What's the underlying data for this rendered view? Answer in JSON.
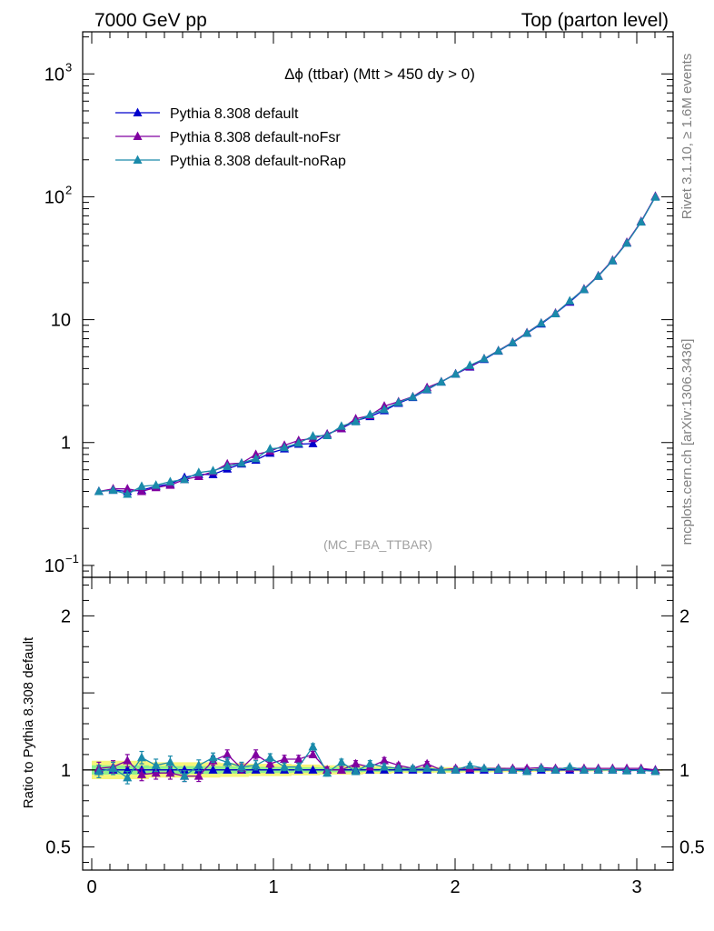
{
  "header": {
    "left": "7000 GeV pp",
    "right": "Top (parton level)"
  },
  "side_labels": {
    "rivet": "Rivet 3.1.10, ≥ 1.6M events",
    "mcplots": "mcplots.cern.ch [arXiv:1306.3436]"
  },
  "chart_data": {
    "type": "line",
    "title": "Δϕ (ttbar) (Mtt > 450 dy > 0)",
    "watermark": "(MC_FBA_TTBAR)",
    "main": {
      "yscale": "log",
      "ylim": [
        0.08,
        2200
      ],
      "y_ticks": [
        {
          "v": 0.1,
          "base": "10",
          "exp": "−1"
        },
        {
          "v": 1,
          "base": "1",
          "exp": ""
        },
        {
          "v": 10,
          "base": "10",
          "exp": ""
        },
        {
          "v": 100,
          "base": "10",
          "exp": "2"
        },
        {
          "v": 1000,
          "base": "10",
          "exp": "3"
        }
      ]
    },
    "ratio": {
      "ylabel": "Ratio to Pythia 8.308 default",
      "ylim": [
        0.35,
        2.25
      ],
      "y_ticks": [
        {
          "v": 0.5,
          "label": "0.5"
        },
        {
          "v": 1,
          "label": "1"
        },
        {
          "v": 2,
          "label": "2"
        }
      ]
    },
    "xlim": [
      -0.05,
      3.2
    ],
    "x_ticks": [
      0,
      1,
      2,
      3
    ],
    "x": [
      0.0393,
      0.1178,
      0.1963,
      0.2749,
      0.3534,
      0.432,
      0.5105,
      0.589,
      0.6676,
      0.7461,
      0.8247,
      0.9032,
      0.9817,
      1.0603,
      1.1388,
      1.2174,
      1.2959,
      1.3744,
      1.453,
      1.5315,
      1.6101,
      1.6886,
      1.7671,
      1.8457,
      1.9242,
      2.0028,
      2.0813,
      2.1598,
      2.2384,
      2.3169,
      2.3955,
      2.474,
      2.5525,
      2.6311,
      2.7096,
      2.7882,
      2.8667,
      2.9452,
      3.0238,
      3.1023
    ],
    "legend_position": "top-left",
    "series": [
      {
        "name": "Pythia 8.308 default",
        "color": "#0000cc",
        "values": [
          0.4,
          0.41,
          0.4,
          0.41,
          0.44,
          0.46,
          0.52,
          0.55,
          0.55,
          0.61,
          0.67,
          0.72,
          0.82,
          0.89,
          0.97,
          0.98,
          1.17,
          1.3,
          1.5,
          1.63,
          1.82,
          2.09,
          2.33,
          2.69,
          3.11,
          3.61,
          4.12,
          4.75,
          5.55,
          6.5,
          7.75,
          9.23,
          11.2,
          13.9,
          17.6,
          22.6,
          30.2,
          42.2,
          62.5,
          100.5
        ],
        "ratio": [
          1.0,
          1.0,
          1.0,
          1.0,
          1.0,
          1.0,
          1.0,
          1.0,
          1.0,
          1.0,
          1.0,
          1.0,
          1.0,
          1.0,
          1.0,
          1.0,
          1.0,
          1.0,
          1.0,
          1.0,
          1.0,
          1.0,
          1.0,
          1.0,
          1.0,
          1.0,
          1.0,
          1.0,
          1.0,
          1.0,
          1.0,
          1.0,
          1.0,
          1.0,
          1.0,
          1.0,
          1.0,
          1.0,
          1.0,
          1.0
        ],
        "ratio_band": [
          0.06,
          0.06,
          0.06,
          0.06,
          0.05,
          0.05,
          0.05,
          0.05,
          0.05,
          0.045,
          0.045,
          0.04,
          0.04,
          0.04,
          0.035,
          0.035,
          0.03,
          0.03,
          0.03,
          0.025,
          0.025,
          0.02,
          0.02,
          0.02,
          0.018,
          0.018,
          0.016,
          0.016,
          0.015,
          0.014,
          0.013,
          0.012,
          0.011,
          0.01,
          0.01,
          0.009,
          0.008,
          0.007,
          0.006,
          0.005
        ]
      },
      {
        "name": "Pythia 8.308 default-noFsr",
        "color": "#8000a0",
        "values": [
          0.4,
          0.42,
          0.42,
          0.4,
          0.43,
          0.45,
          0.5,
          0.53,
          0.58,
          0.67,
          0.68,
          0.8,
          0.85,
          0.95,
          1.04,
          1.08,
          1.17,
          1.3,
          1.56,
          1.66,
          1.98,
          2.15,
          2.36,
          2.8,
          3.12,
          3.63,
          4.15,
          4.81,
          5.6,
          6.56,
          7.84,
          9.37,
          11.3,
          14.1,
          17.8,
          22.8,
          30.5,
          42.6,
          63.0,
          101.0
        ],
        "ratio": [
          1.01,
          1.02,
          1.06,
          0.97,
          0.98,
          0.98,
          0.96,
          0.96,
          1.06,
          1.1,
          1.01,
          1.1,
          1.04,
          1.07,
          1.07,
          1.1,
          1.0,
          1.0,
          1.04,
          1.02,
          1.06,
          1.03,
          1.01,
          1.04,
          1.0,
          1.01,
          1.01,
          1.01,
          1.01,
          1.01,
          1.01,
          1.015,
          1.01,
          1.01,
          1.01,
          1.01,
          1.01,
          1.01,
          1.01,
          1.0
        ],
        "ratio_err": [
          0.04,
          0.04,
          0.04,
          0.04,
          0.04,
          0.04,
          0.035,
          0.035,
          0.03,
          0.03,
          0.03,
          0.03,
          0.025,
          0.025,
          0.025,
          0.02,
          0.02,
          0.02,
          0.02,
          0.02,
          0.02,
          0.015,
          0.015,
          0.015,
          0.015,
          0.012,
          0.012,
          0.01,
          0.01,
          0.01,
          0.01,
          0.01,
          0.008,
          0.008,
          0.008,
          0.006,
          0.006,
          0.005,
          0.005,
          0.004
        ]
      },
      {
        "name": "Pythia 8.308 default-noRap",
        "color": "#1a8aaa",
        "values": [
          0.4,
          0.41,
          0.38,
          0.44,
          0.45,
          0.48,
          0.5,
          0.57,
          0.59,
          0.64,
          0.68,
          0.74,
          0.89,
          0.91,
          0.99,
          1.13,
          1.14,
          1.36,
          1.48,
          1.69,
          1.86,
          2.12,
          2.35,
          2.71,
          3.11,
          3.61,
          4.25,
          4.8,
          5.58,
          6.51,
          7.77,
          9.35,
          11.2,
          14.2,
          17.6,
          22.6,
          30.2,
          42.0,
          62.4,
          99.5
        ],
        "ratio": [
          0.99,
          1.01,
          0.95,
          1.08,
          1.03,
          1.05,
          0.96,
          1.03,
          1.08,
          1.05,
          1.02,
          1.03,
          1.08,
          1.02,
          1.02,
          1.15,
          0.98,
          1.05,
          0.99,
          1.04,
          1.02,
          1.01,
          1.01,
          1.01,
          1.0,
          1.0,
          1.03,
          1.01,
          1.005,
          1.0,
          0.99,
          1.01,
          1.0,
          1.02,
          1.0,
          1.0,
          1.0,
          0.995,
          0.998,
          0.99
        ],
        "ratio_err": [
          0.04,
          0.04,
          0.04,
          0.04,
          0.04,
          0.04,
          0.035,
          0.035,
          0.03,
          0.03,
          0.03,
          0.03,
          0.025,
          0.025,
          0.025,
          0.02,
          0.02,
          0.02,
          0.02,
          0.02,
          0.02,
          0.015,
          0.015,
          0.015,
          0.015,
          0.012,
          0.012,
          0.01,
          0.01,
          0.01,
          0.01,
          0.01,
          0.008,
          0.008,
          0.008,
          0.006,
          0.006,
          0.005,
          0.005,
          0.004
        ]
      }
    ]
  }
}
